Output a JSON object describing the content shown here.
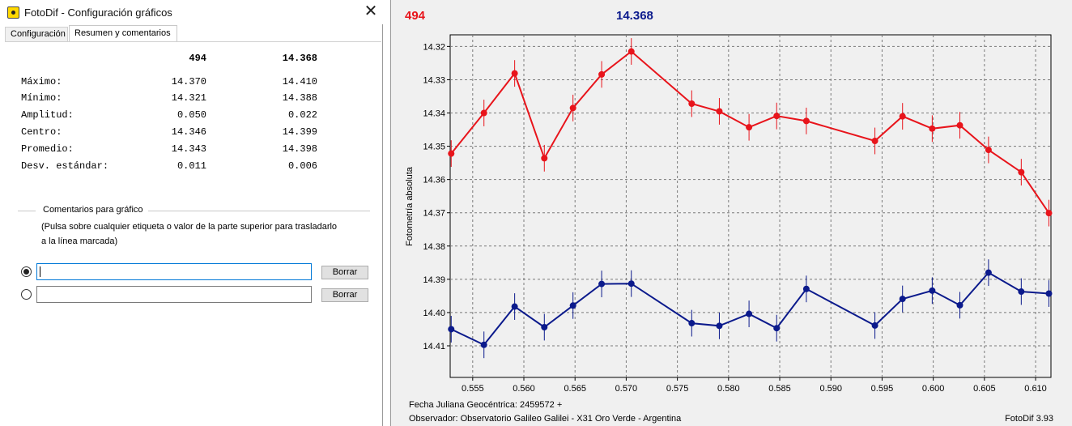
{
  "window": {
    "title": "FotoDif - Configuración gráficos",
    "close_glyph": "✕",
    "icon": "app-icon"
  },
  "tabs": [
    {
      "label": "Configuración",
      "active": false
    },
    {
      "label": "Resumen y comentarios",
      "active": true
    }
  ],
  "summary": {
    "headers": [
      "494",
      "14.368"
    ],
    "rows": [
      {
        "label": "Máximo:",
        "v1": "14.370",
        "v2": "14.410"
      },
      {
        "label": "Mínimo:",
        "v1": "14.321",
        "v2": "14.388"
      },
      {
        "label": "Amplitud:",
        "v1": "0.050",
        "v2": "0.022"
      },
      {
        "label": "Centro:",
        "v1": "14.346",
        "v2": "14.399"
      },
      {
        "label": "Promedio:",
        "v1": "14.343",
        "v2": "14.398"
      },
      {
        "label": "Desv. estándar:",
        "v1": "0.011",
        "v2": "0.006"
      }
    ]
  },
  "comments": {
    "section_title": "Comentarios para gráfico",
    "hint_line1": "(Pulsa sobre cualquier etiqueta o valor de la parte superior para trasladarlo",
    "hint_line2": "a la línea marcada)",
    "fields": [
      {
        "value": "",
        "selected": true,
        "button": "Borrar"
      },
      {
        "value": "",
        "selected": false,
        "button": "Borrar"
      }
    ]
  },
  "chart": {
    "header_labels": [
      {
        "text": "494",
        "color": "#e8141b"
      },
      {
        "text": "14.368",
        "color": "#0b1a8c"
      }
    ],
    "footer_line1": "Fecha Juliana Geocéntrica: 2459572 +",
    "footer_line2": "Observador: Observatorio Galileo Galilei - X31 Oro Verde - Argentina",
    "version": "FotoDif 3.93"
  },
  "chart_data": {
    "type": "line",
    "ylabel": "Fotometría absoluta",
    "xlabel": "",
    "xlim": [
      0.5528,
      0.6115
    ],
    "ylim": [
      14.3165,
      14.4195
    ],
    "y_inverted": true,
    "grid": true,
    "xticks": [
      "0.555",
      "0.560",
      "0.565",
      "0.570",
      "0.575",
      "0.580",
      "0.585",
      "0.590",
      "0.595",
      "0.600",
      "0.605",
      "0.610"
    ],
    "yticks": [
      "14.32",
      "14.33",
      "14.34",
      "14.35",
      "14.36",
      "14.37",
      "14.38",
      "14.39",
      "14.40",
      "14.41"
    ],
    "series": [
      {
        "name": "494",
        "color": "#e8141b",
        "x": [
          0.5529,
          0.5561,
          0.5591,
          0.562,
          0.5648,
          0.5676,
          0.5705,
          0.5764,
          0.5791,
          0.582,
          0.5847,
          0.5876,
          0.5943,
          0.597,
          0.5999,
          0.6026,
          0.6054,
          0.6086,
          0.6113
        ],
        "y": [
          14.3522,
          14.34,
          14.3281,
          14.3536,
          14.3385,
          14.3284,
          14.3215,
          14.3372,
          14.3395,
          14.3443,
          14.3409,
          14.3424,
          14.3484,
          14.341,
          14.3447,
          14.3437,
          14.3511,
          14.3578,
          14.3701
        ],
        "error": 0.004
      },
      {
        "name": "14.368",
        "color": "#0b1a8c",
        "x": [
          0.5529,
          0.5561,
          0.5591,
          0.562,
          0.5648,
          0.5676,
          0.5705,
          0.5764,
          0.5791,
          0.582,
          0.5847,
          0.5876,
          0.5943,
          0.597,
          0.5999,
          0.6026,
          0.6054,
          0.6086,
          0.6113
        ],
        "y": [
          14.405,
          14.4097,
          14.3982,
          14.4044,
          14.3979,
          14.3914,
          14.3913,
          14.4032,
          14.404,
          14.4004,
          14.4047,
          14.3929,
          14.4039,
          14.3959,
          14.3934,
          14.3978,
          14.388,
          14.3937,
          14.3943
        ],
        "error": 0.004
      }
    ]
  }
}
